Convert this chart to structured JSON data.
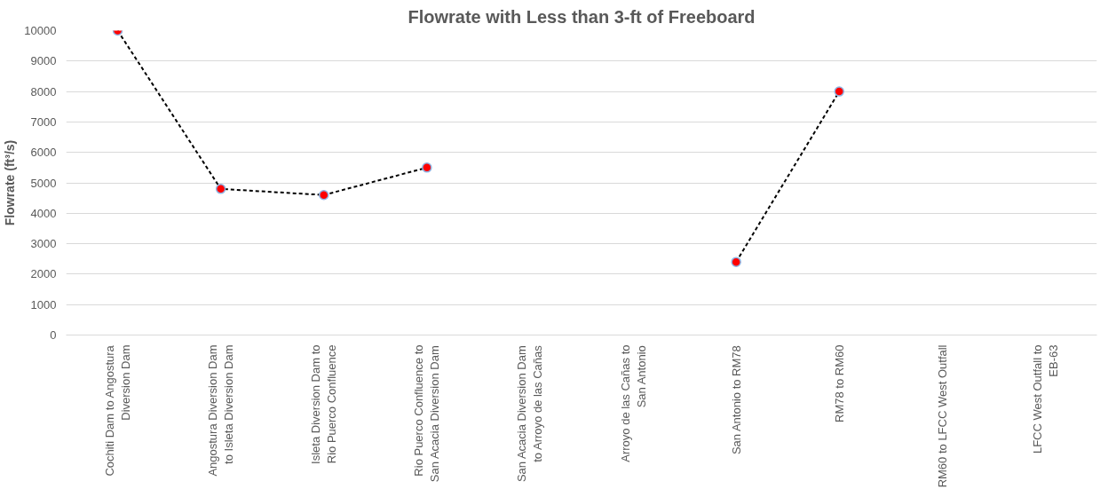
{
  "chart_data": {
    "type": "line",
    "title": "Flowrate with Less than 3-ft of Freeboard",
    "ylabel": "Flowrate (ft³/s)",
    "categories": [
      "Cochiti Dam to Angostura Diversion Dam",
      "Angostura Diversion Dam to Isleta Diversion Dam",
      "Isleta Diversion Dam to Rio Puerco Confluence",
      "Rio Puerco Confluence to San Acacia Diversion Dam",
      "San Acacia Diversion Dam to Arroyo de las Cañas",
      "Arroyo de las Cañas to San Antonio",
      "San Antonio to RM78",
      "RM78 to RM60",
      "RM60 to LFCC West Outfall",
      "LFCC West Outfall to EB-63"
    ],
    "series": [
      {
        "color": "#ff0000",
        "values": [
          10000,
          4800,
          4600,
          5500,
          null,
          null,
          2400,
          8000,
          null,
          null
        ]
      }
    ],
    "ylim": [
      0,
      10000
    ],
    "yticks": [
      0,
      1000,
      2000,
      3000,
      4000,
      5000,
      6000,
      7000,
      8000,
      9000,
      10000
    ],
    "grid": "y",
    "marker": "circle",
    "line_style": "dashed"
  }
}
